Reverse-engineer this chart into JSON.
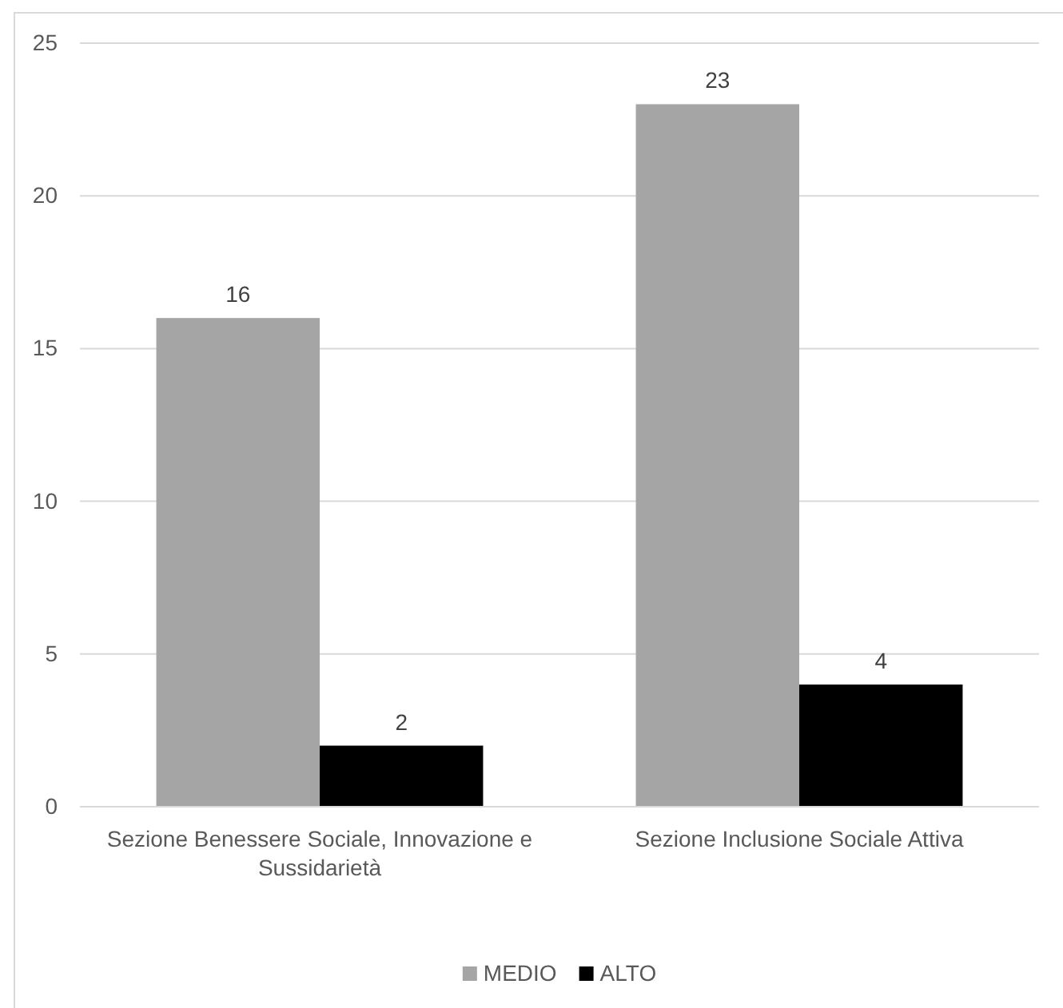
{
  "chart_data": {
    "type": "bar",
    "categories": [
      "Sezione Benessere Sociale, Innovazione e Sussidarietà",
      "Sezione Inclusione Sociale Attiva"
    ],
    "series": [
      {
        "name": "MEDIO",
        "color": "#a5a5a5",
        "values": [
          16,
          23
        ]
      },
      {
        "name": "ALTO",
        "color": "#000000",
        "values": [
          2,
          4
        ]
      }
    ],
    "ylim": [
      0,
      25
    ],
    "yticks": [
      0,
      5,
      10,
      15,
      20,
      25
    ],
    "grid": "y",
    "legend": "bottom",
    "data_labels": true
  }
}
